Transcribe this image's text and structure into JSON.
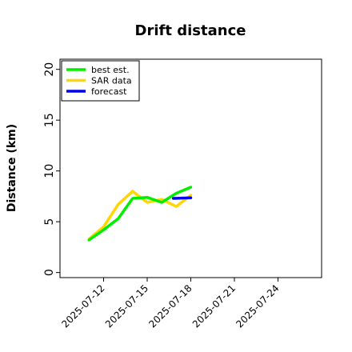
{
  "chart_data": {
    "type": "line",
    "title": "Drift distance",
    "xlabel": "",
    "ylabel": "Distance (km)",
    "ylim": [
      -0.5,
      21
    ],
    "xlim": [
      "2025-07-09",
      "2025-07-27"
    ],
    "x_tick_labels": [
      "2025-07-12",
      "2025-07-15",
      "2025-07-18",
      "2025-07-21",
      "2025-07-24"
    ],
    "y_ticks": [
      0,
      5,
      10,
      15,
      20
    ],
    "y_tick_labels": [
      "0",
      "5",
      "10",
      "15",
      "20"
    ],
    "grid": false,
    "legend_position": "top-left",
    "series": [
      {
        "name": "best est.",
        "color": "#00ee00",
        "points": [
          {
            "x": "2025-07-11",
            "y": 3.2
          },
          {
            "x": "2025-07-12",
            "y": 4.2
          },
          {
            "x": "2025-07-13",
            "y": 5.3
          },
          {
            "x": "2025-07-14",
            "y": 7.3
          },
          {
            "x": "2025-07-15",
            "y": 7.4
          },
          {
            "x": "2025-07-16",
            "y": 6.9
          },
          {
            "x": "2025-07-17",
            "y": 7.8
          },
          {
            "x": "2025-07-18",
            "y": 8.4
          }
        ]
      },
      {
        "name": "SAR data",
        "color": "#ffd700",
        "points": [
          {
            "x": "2025-07-11",
            "y": 3.3
          },
          {
            "x": "2025-07-12",
            "y": 4.5
          },
          {
            "x": "2025-07-13",
            "y": 6.7
          },
          {
            "x": "2025-07-14",
            "y": 8.0
          },
          {
            "x": "2025-07-15",
            "y": 6.9
          },
          {
            "x": "2025-07-16",
            "y": 7.2
          },
          {
            "x": "2025-07-17",
            "y": 6.5
          },
          {
            "x": "2025-07-18",
            "y": 7.6
          }
        ]
      },
      {
        "name": "forecast",
        "color": "#0000ee",
        "points": [
          {
            "x": "2025-07-16.8",
            "y": 7.3
          },
          {
            "x": "2025-07-18",
            "y": 7.35
          }
        ]
      }
    ]
  }
}
